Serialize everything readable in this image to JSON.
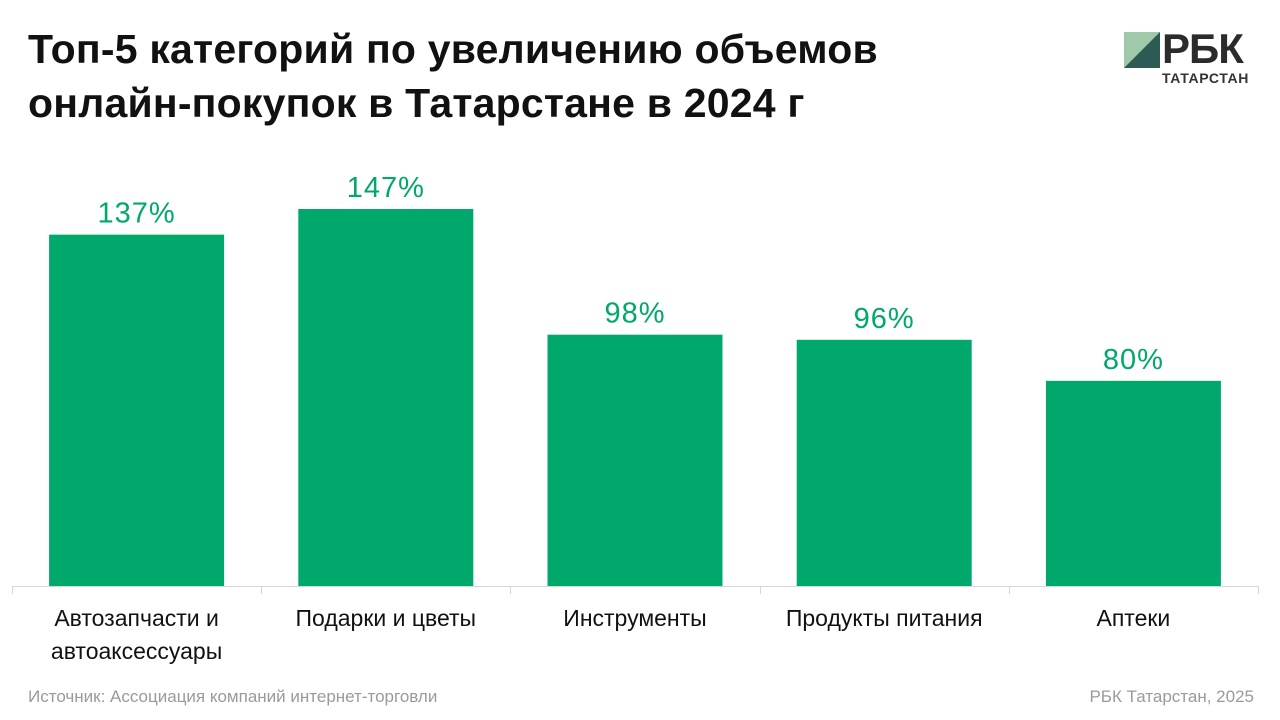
{
  "title": {
    "line1": "Топ-5 категорий по увеличению объемов",
    "line2": "онлайн-покупок в Татарстане в 2024 г"
  },
  "logo": {
    "word": "РБК",
    "subtitle": "ТАТАРСТАН"
  },
  "footer": {
    "source": "Источник: Ассоциация компаний интернет-торговли",
    "credit": "РБК Татарстан, 2025"
  },
  "colors": {
    "bar": "#00a86b",
    "value_label": "#00a86b",
    "axis": "#d6d6d6",
    "logo_dark": "#2e5a55",
    "logo_light": "#9fc9a8"
  },
  "chart_data": {
    "type": "bar",
    "title": "Топ-5 категорий по увеличению объемов онлайн-покупок в Татарстане в 2024 г",
    "categories": [
      [
        "Автозапчасти и",
        "автоаксессуары"
      ],
      [
        "Подарки и цветы"
      ],
      [
        "Инструменты"
      ],
      [
        "Продукты питания"
      ],
      [
        "Аптеки"
      ]
    ],
    "values": [
      137,
      147,
      98,
      96,
      80
    ],
    "value_labels": [
      "137%",
      "147%",
      "98%",
      "96%",
      "80%"
    ],
    "unit": "%",
    "ylim": [
      0,
      147
    ],
    "grid": false,
    "legend": "none"
  }
}
